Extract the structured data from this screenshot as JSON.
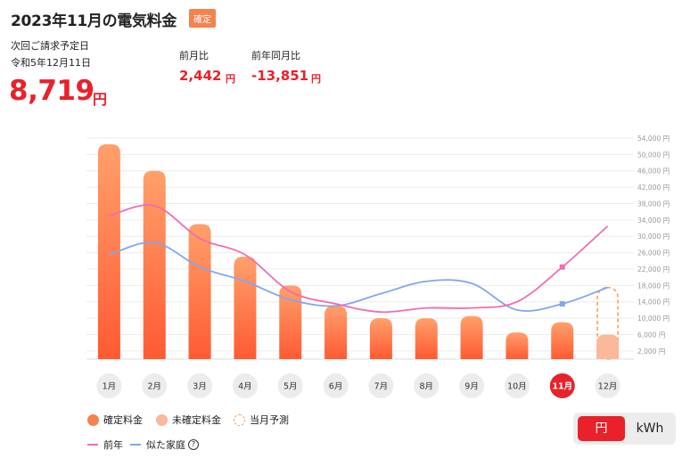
{
  "header": {
    "title": "2023年11月の電気料金",
    "status_badge": "確定"
  },
  "billing": {
    "next_date_label": "次回ご請求予定日",
    "next_date": "令和5年12月11日",
    "amount": "8,719",
    "unit": "円"
  },
  "comparisons": [
    {
      "label": "前月比",
      "value": "2,442",
      "unit": "円"
    },
    {
      "label": "前年同月比",
      "value": "-13,851",
      "unit": "円"
    }
  ],
  "colors": {
    "accent": "#e8212b",
    "bar_top": "#ffa06b",
    "bar_bottom": "#ff5a33",
    "unconfirmed": "#fbb89a",
    "forecast": "#f5a25d",
    "prev_year": "#f06cb4",
    "similar": "#82a6ee",
    "grid": "#ececec"
  },
  "chart_data": {
    "type": "bar",
    "categories": [
      "1月",
      "2月",
      "3月",
      "4月",
      "5月",
      "6月",
      "7月",
      "8月",
      "9月",
      "10月",
      "11月",
      "12月"
    ],
    "selected_category": "11月",
    "series": [
      {
        "name": "確定料金",
        "type": "bar",
        "values": [
          52500,
          46000,
          33000,
          25000,
          18000,
          13000,
          10000,
          10000,
          10500,
          6500,
          9000,
          null
        ]
      },
      {
        "name": "未確定料金",
        "type": "bar",
        "values": [
          null,
          null,
          null,
          null,
          null,
          null,
          null,
          null,
          null,
          null,
          null,
          6000
        ]
      },
      {
        "name": "当月予測",
        "type": "bar-outline",
        "values": [
          null,
          null,
          null,
          null,
          null,
          null,
          null,
          null,
          null,
          null,
          null,
          17500
        ]
      },
      {
        "name": "前年",
        "type": "line",
        "values": [
          35000,
          37500,
          29500,
          25500,
          16500,
          13500,
          11500,
          12500,
          12500,
          14000,
          22500,
          32500
        ]
      },
      {
        "name": "似た家庭",
        "type": "line",
        "values": [
          25500,
          28500,
          22500,
          19000,
          14500,
          13000,
          16000,
          19000,
          18500,
          12000,
          13500,
          17500
        ]
      }
    ],
    "yticks": [
      "2,000 円",
      "6,000 円",
      "10,000 円",
      "14,000 円",
      "18,000 円",
      "22,000 円",
      "26,000 円",
      "30,000 円",
      "34,000 円",
      "38,000 円",
      "42,000 円",
      "46,000 円",
      "50,000 円",
      "54,000 円"
    ],
    "ytick_values": [
      2000,
      6000,
      10000,
      14000,
      18000,
      22000,
      26000,
      30000,
      34000,
      38000,
      42000,
      46000,
      50000,
      54000
    ],
    "ylim": [
      0,
      54000
    ],
    "grid": true,
    "legend_position": "bottom-left"
  },
  "legend": {
    "confirmed": "確定料金",
    "unconfirmed": "未確定料金",
    "forecast": "当月予測",
    "prev_year": "前年",
    "similar": "似た家庭",
    "help_icon": "?"
  },
  "unit_toggle": {
    "yen": "円",
    "kwh": "kWh",
    "selected": "円"
  }
}
